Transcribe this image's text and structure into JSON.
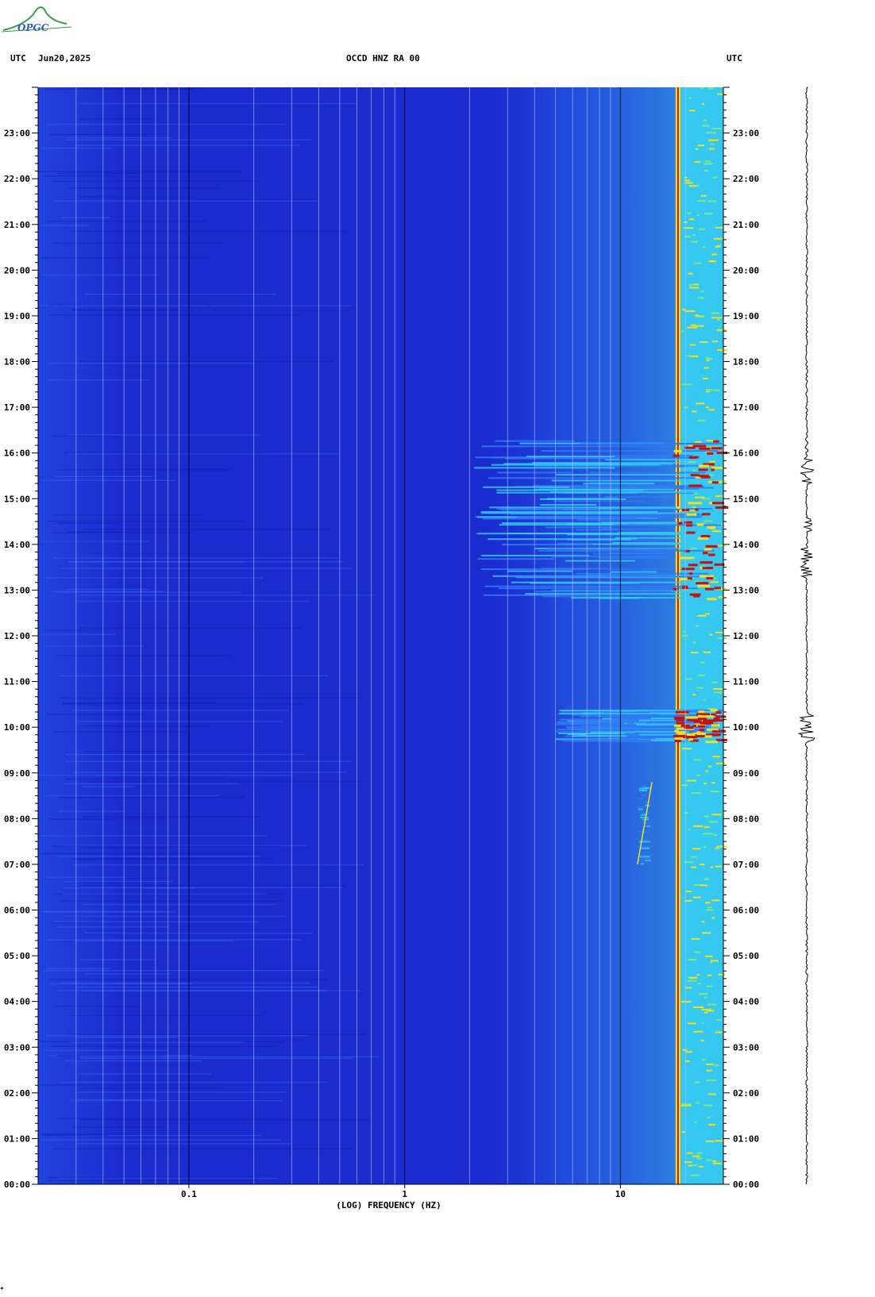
{
  "logo": {
    "text": "OPGC"
  },
  "header": {
    "left_label": "UTC",
    "date": "Jun20,2025",
    "station": "OCCD HNZ RA 00",
    "right_label": "UTC"
  },
  "footer_mark": "*",
  "colors": {
    "background_blue": "#1a2bd0",
    "dark_blue": "#0f1fb0",
    "energy_cyan": "#35c8f0",
    "energy_yellow": "#f0e020",
    "energy_red": "#c81010",
    "trace": "#000000"
  },
  "chart_data": {
    "type": "heatmap",
    "title": "OCCD HNZ RA 00",
    "xlabel": "(LOG) FREQUENCY (HZ)",
    "ylabel": "",
    "x_scale": "log",
    "xlim": [
      0.02,
      30
    ],
    "x_ticks": [
      {
        "value": 0.1,
        "label": "0.1"
      },
      {
        "value": 1,
        "label": "1"
      },
      {
        "value": 10,
        "label": "10"
      }
    ],
    "ylim_hours": [
      0,
      24
    ],
    "y_ticks": [
      "00:00",
      "01:00",
      "02:00",
      "03:00",
      "04:00",
      "05:00",
      "06:00",
      "07:00",
      "08:00",
      "09:00",
      "10:00",
      "11:00",
      "12:00",
      "13:00",
      "14:00",
      "15:00",
      "16:00",
      "17:00",
      "18:00",
      "19:00",
      "20:00",
      "21:00",
      "22:00",
      "23:00"
    ],
    "persistent_bands_hz": [
      {
        "low": 18,
        "high": 19,
        "level": "high"
      },
      {
        "low": 19,
        "high": 30,
        "level": "medium"
      }
    ],
    "events": [
      {
        "start_hour": 12.8,
        "end_hour": 16.3,
        "freq_low_hz": 2,
        "freq_high_hz": 30,
        "level": "high"
      },
      {
        "start_hour": 9.7,
        "end_hour": 10.4,
        "freq_low_hz": 5,
        "freq_high_hz": 30,
        "level": "high"
      },
      {
        "start_hour": 7.0,
        "end_hour": 8.8,
        "freq_low_hz": 12,
        "freq_high_hz": 14,
        "level": "medium"
      }
    ]
  }
}
